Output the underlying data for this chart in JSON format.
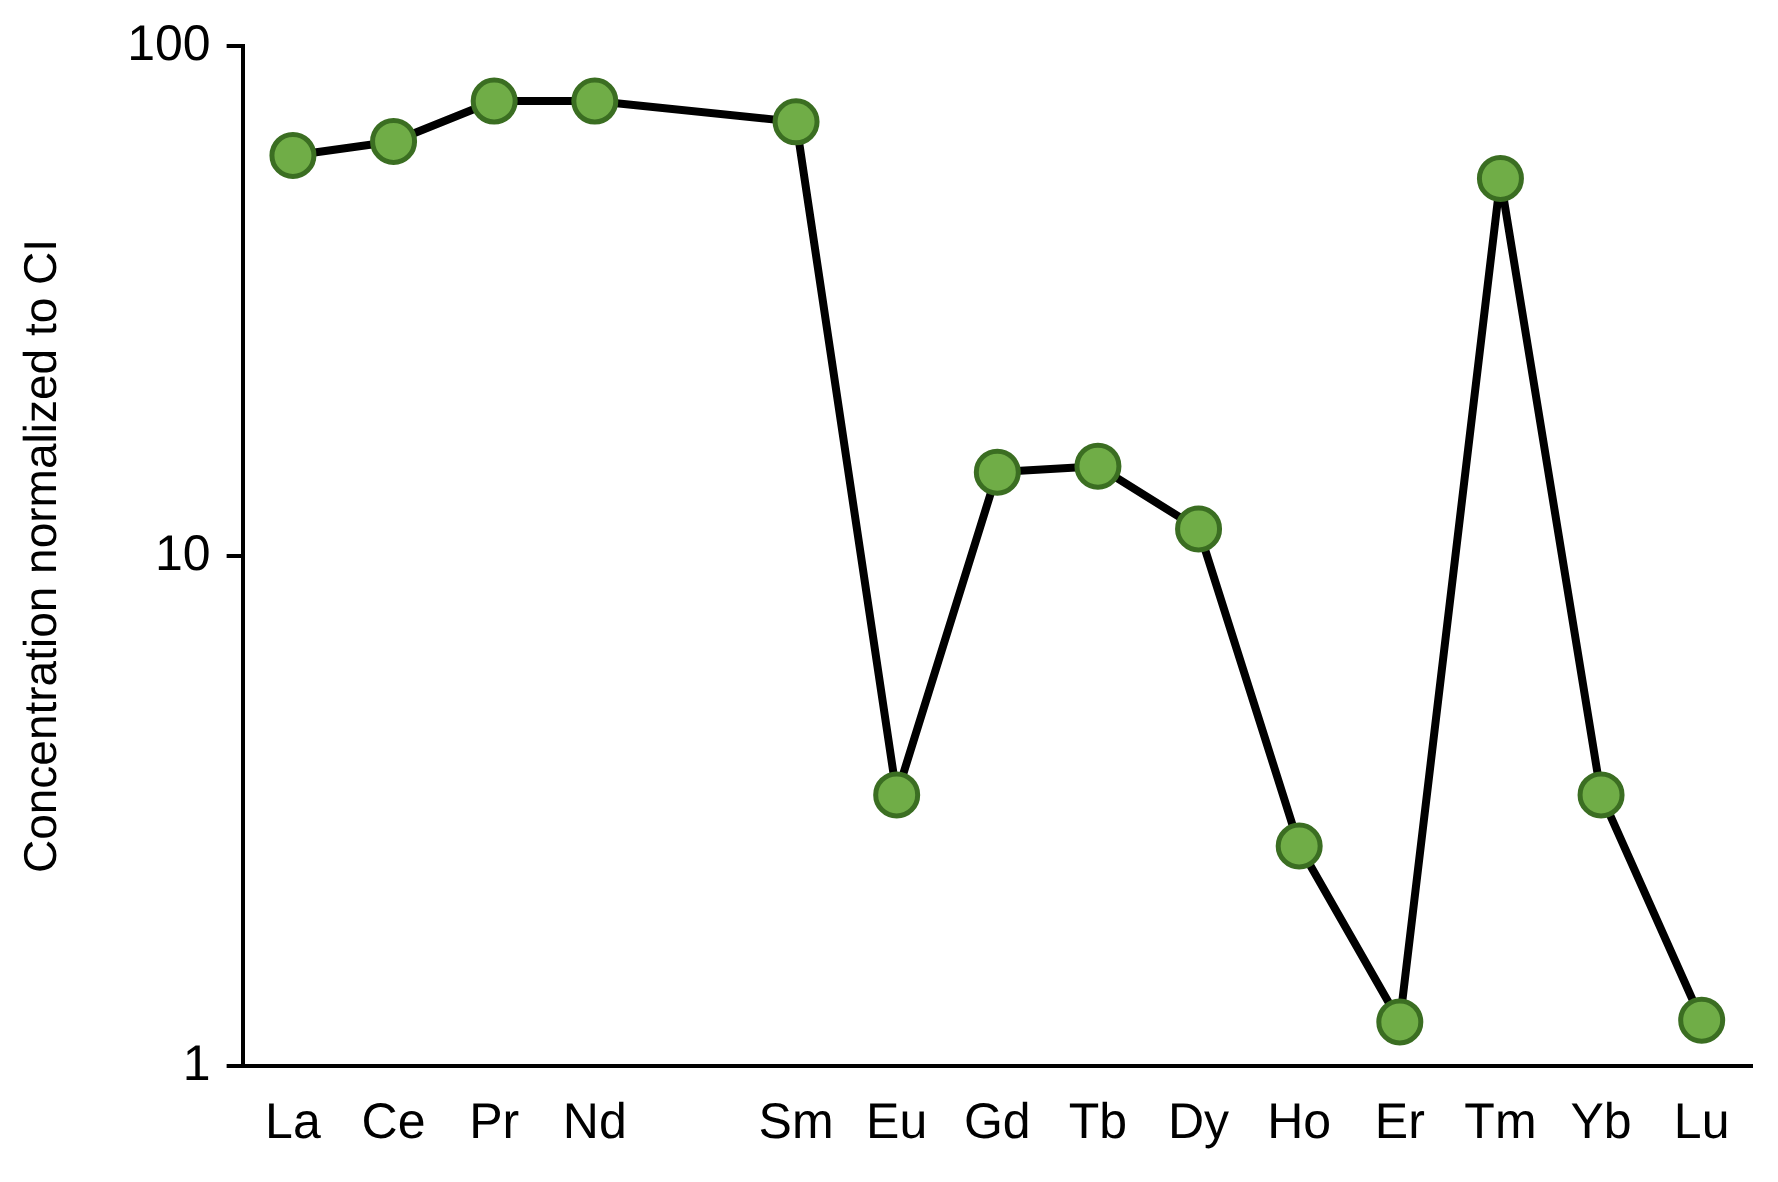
{
  "chart_data": {
    "type": "line",
    "ylabel": "Concentration normalized to CI",
    "categories": [
      "La",
      "Ce",
      "Pr",
      "Nd",
      null,
      "Sm",
      "Eu",
      "Gd",
      "Tb",
      "Dy",
      "Ho",
      "Er",
      "Tm",
      "Yb",
      "Lu"
    ],
    "series": [
      {
        "color": "#70ad47",
        "values": [
          61,
          65,
          78,
          78,
          null,
          71,
          3.4,
          14.6,
          15,
          11.3,
          2.7,
          1.22,
          55,
          3.4,
          1.23
        ]
      }
    ],
    "log": "y",
    "ylim": [
      1,
      100
    ],
    "yticks": [
      1,
      10,
      100
    ],
    "grid": false,
    "legend": false,
    "marker": "circle",
    "line_style": "solid"
  }
}
